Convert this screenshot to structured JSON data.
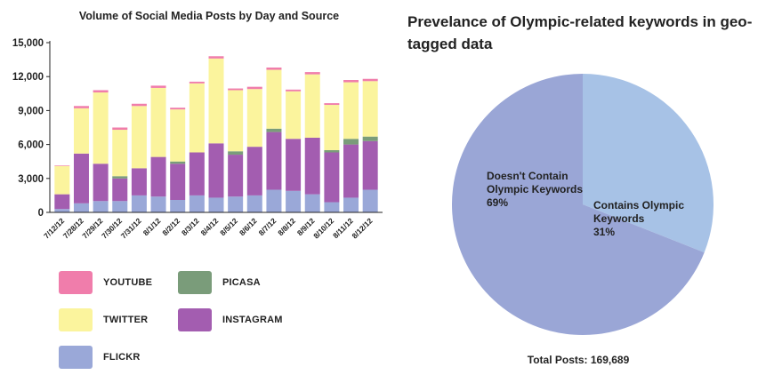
{
  "chart_data": [
    {
      "type": "bar",
      "stacked": true,
      "title": "Volume of Social Media Posts by Day and Source",
      "categories": [
        "7/12/12",
        "7/28/12",
        "7/29/12",
        "7/30/12",
        "7/31/12",
        "8/1/12",
        "8/2/12",
        "8/3/12",
        "8/4/12",
        "8/5/12",
        "8/6/12",
        "8/7/12",
        "8/8/12",
        "8/9/12",
        "8/10/12",
        "8/11/12",
        "8/12/12"
      ],
      "series": [
        {
          "name": "FLICKR",
          "color": "#9aa8d8",
          "values": [
            300,
            800,
            1000,
            1000,
            1500,
            1400,
            1100,
            1500,
            1300,
            1400,
            1500,
            2000,
            1900,
            1600,
            900,
            1300,
            2000
          ]
        },
        {
          "name": "INSTAGRAM",
          "color": "#a35db0",
          "values": [
            1300,
            4400,
            3300,
            2000,
            2400,
            3500,
            3200,
            3800,
            4800,
            3700,
            4300,
            5100,
            4600,
            5000,
            4400,
            4700,
            4300
          ]
        },
        {
          "name": "PICASA",
          "color": "#7a9c7a",
          "values": [
            0,
            0,
            0,
            200,
            0,
            0,
            200,
            0,
            0,
            300,
            0,
            300,
            0,
            0,
            200,
            500,
            400
          ]
        },
        {
          "name": "TWITTER",
          "color": "#fbf49d",
          "values": [
            2500,
            4000,
            6300,
            4100,
            5500,
            6100,
            4600,
            6100,
            7500,
            5400,
            5100,
            5200,
            4200,
            5600,
            4000,
            5000,
            4900
          ]
        },
        {
          "name": "YOUTUBE",
          "color": "#f07dab",
          "values": [
            50,
            200,
            200,
            200,
            200,
            200,
            150,
            150,
            200,
            150,
            200,
            200,
            150,
            200,
            150,
            200,
            200
          ]
        }
      ],
      "ylim": [
        0,
        15000
      ],
      "yticks": [
        0,
        3000,
        6000,
        9000,
        12000,
        15000
      ],
      "ytick_labels": [
        "0",
        "3,000",
        "6,000",
        "9,000",
        "12,000",
        "15,000"
      ],
      "grid": false
    },
    {
      "type": "pie",
      "title": "Prevelance of Olympic-related keywords in geo-tagged data",
      "slices": [
        {
          "label": "Contains Olympic Keywords",
          "value": 31,
          "pct_label": "31%",
          "color": "#a7c2e6"
        },
        {
          "label": "Doesn't Contain Olympic Keywords",
          "value": 69,
          "pct_label": "69%",
          "color": "#9aa6d6"
        }
      ],
      "total_label": "Total Posts: 169,689"
    }
  ],
  "legend": [
    {
      "name": "YOUTUBE",
      "color": "#f07dab"
    },
    {
      "name": "PICASA",
      "color": "#7a9c7a"
    },
    {
      "name": "TWITTER",
      "color": "#fbf49d"
    },
    {
      "name": "INSTAGRAM",
      "color": "#a35db0"
    },
    {
      "name": "FLICKR",
      "color": "#9aa8d8"
    }
  ]
}
